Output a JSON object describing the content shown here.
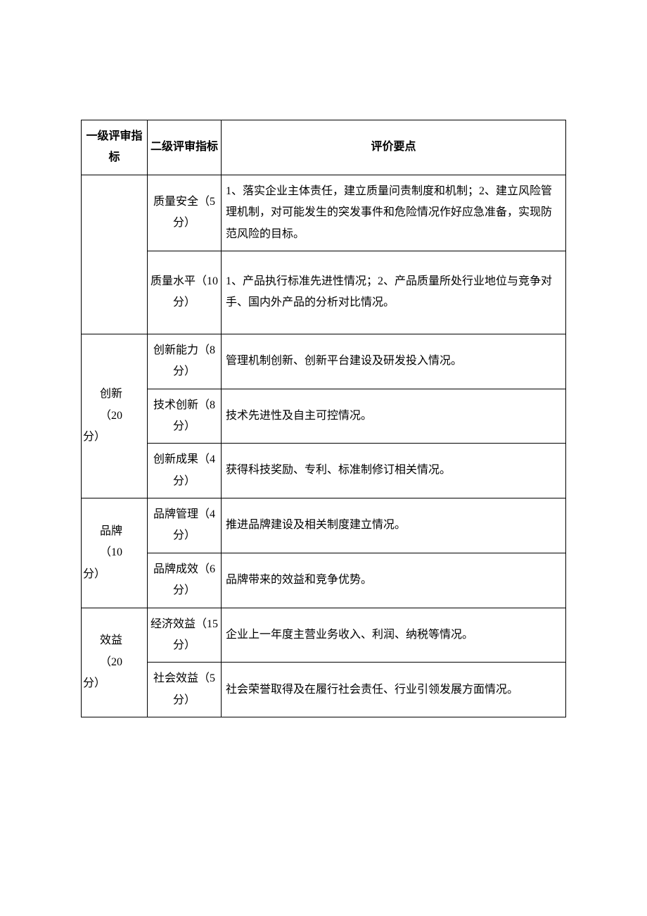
{
  "table": {
    "header": {
      "col1": "一级评审指标",
      "col2": "二级评审指标",
      "col3": "评价要点"
    },
    "rows": [
      {
        "level1_blank": true,
        "level1_rowspan": 2,
        "level2": "质量安全（5分）",
        "detail": "1、落实企业主体责任，建立质量问责制度和机制；2、建立风险管理机制，对可能发生的突发事件和危险情况作好应急准备，实现防范风险的目标。"
      },
      {
        "level2": "质量水平（10分）",
        "detail": "1、产品执行标准先进性情况；2、产品质量所处行业地位与竞争对手、国内外产品的分析对比情况。"
      },
      {
        "level1_label": "创新",
        "level1_score": "（20分）",
        "level1_rowspan": 3,
        "level2": "创新能力（8分）",
        "detail": "管理机制创新、创新平台建设及研发投入情况。"
      },
      {
        "level2": "技术创新（8分）",
        "detail": "技术先进性及自主可控情况。"
      },
      {
        "level2": "创新成果（4分）",
        "detail": "获得科技奖励、专利、标准制修订相关情况。"
      },
      {
        "level1_label": "品牌",
        "level1_score": "（10分）",
        "level1_rowspan": 2,
        "level2": "品牌管理（4分）",
        "detail": "推进品牌建设及相关制度建立情况。"
      },
      {
        "level2": "品牌成效（6分）",
        "detail": "品牌带来的效益和竞争优势。"
      },
      {
        "level1_label": "效益",
        "level1_score": "（20分）",
        "level1_rowspan": 2,
        "level2": "经济效益（15分）",
        "detail": "企业上一年度主营业务收入、利润、纳税等情况。"
      },
      {
        "level2": "社会效益（5分）",
        "detail": "社会荣誉取得及在履行社会责任、行业引领发展方面情况。"
      }
    ]
  },
  "style": {
    "font_family": "SimSun",
    "font_size_pt": 12,
    "border_color": "#000000",
    "background_color": "#ffffff",
    "text_color": "#000000",
    "line_height": 1.9
  }
}
